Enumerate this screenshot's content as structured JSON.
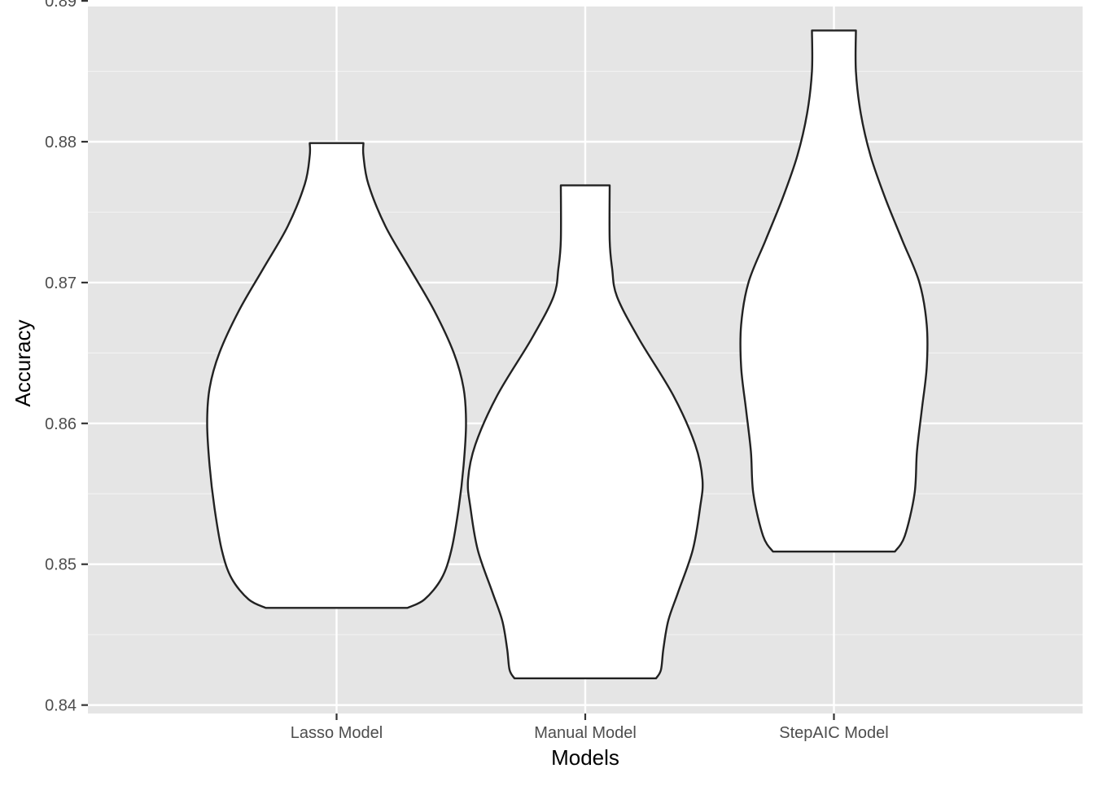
{
  "chart_data": {
    "type": "violin",
    "title": "",
    "xlabel": "Models",
    "ylabel": "Accuracy",
    "categories": [
      "Lasso Model",
      "Manual Model",
      "StepAIC Model"
    ],
    "ylim": [
      0.8394,
      0.8896
    ],
    "y_ticks": [
      0.84,
      0.85,
      0.86,
      0.87,
      0.88,
      0.89
    ],
    "y_tick_labels": [
      "0.84",
      "0.85",
      "0.86",
      "0.87",
      "0.88",
      "0.89"
    ],
    "grid": true,
    "panel_background": "#e5e5e5",
    "grid_color": "#ffffff",
    "violin_fill": "#ffffff",
    "violin_stroke": "#222222",
    "series": [
      {
        "category": "Lasso Model",
        "min": 0.8469,
        "max": 0.8799,
        "density_profile": [
          [
            0.8469,
            0.29
          ],
          [
            0.8475,
            0.36
          ],
          [
            0.849,
            0.43
          ],
          [
            0.851,
            0.47
          ],
          [
            0.854,
            0.5
          ],
          [
            0.857,
            0.52
          ],
          [
            0.86,
            0.53
          ],
          [
            0.8625,
            0.52
          ],
          [
            0.865,
            0.48
          ],
          [
            0.868,
            0.4
          ],
          [
            0.871,
            0.3
          ],
          [
            0.874,
            0.2
          ],
          [
            0.877,
            0.13
          ],
          [
            0.879,
            0.11
          ],
          [
            0.8799,
            0.11
          ]
        ]
      },
      {
        "category": "Manual Model",
        "min": 0.8419,
        "max": 0.8769,
        "density_profile": [
          [
            0.8419,
            0.29
          ],
          [
            0.8425,
            0.31
          ],
          [
            0.844,
            0.32
          ],
          [
            0.846,
            0.34
          ],
          [
            0.848,
            0.38
          ],
          [
            0.851,
            0.44
          ],
          [
            0.854,
            0.47
          ],
          [
            0.856,
            0.48
          ],
          [
            0.8585,
            0.45
          ],
          [
            0.862,
            0.36
          ],
          [
            0.866,
            0.22
          ],
          [
            0.869,
            0.13
          ],
          [
            0.871,
            0.11
          ],
          [
            0.873,
            0.1
          ],
          [
            0.8769,
            0.1
          ]
        ]
      },
      {
        "category": "StepAIC Model",
        "min": 0.8509,
        "max": 0.8879,
        "density_profile": [
          [
            0.8509,
            0.25
          ],
          [
            0.852,
            0.29
          ],
          [
            0.855,
            0.33
          ],
          [
            0.858,
            0.34
          ],
          [
            0.861,
            0.36
          ],
          [
            0.864,
            0.38
          ],
          [
            0.867,
            0.38
          ],
          [
            0.87,
            0.35
          ],
          [
            0.873,
            0.28
          ],
          [
            0.876,
            0.21
          ],
          [
            0.879,
            0.15
          ],
          [
            0.882,
            0.11
          ],
          [
            0.885,
            0.09
          ],
          [
            0.8879,
            0.09
          ]
        ]
      }
    ]
  }
}
